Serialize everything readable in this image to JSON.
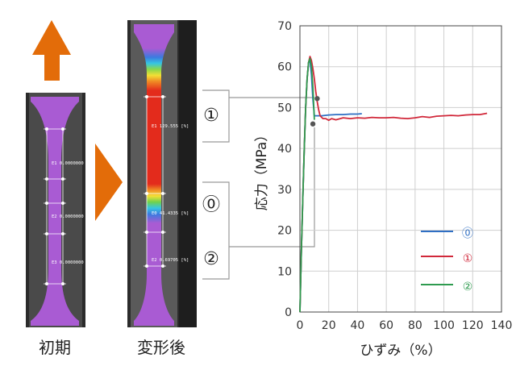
{
  "labels": {
    "initial": "初期",
    "deformed": "変形後"
  },
  "markers": {
    "m0": "⓪",
    "m1": "①",
    "m2": "②"
  },
  "gauges": {
    "initial": [
      "E1 0.0000000 [%]",
      "E2 0.0000000 [%]",
      "E3 0.0000000 [%]"
    ],
    "deformed": [
      "E1 129.555 [%]",
      "E0 41.4335 [%]",
      "E2 0.69705 [%]"
    ]
  },
  "colors": {
    "arrow": "#e36c09",
    "specimen": "#a95bd3",
    "series0": "#2f6fc4",
    "series1": "#d1283a",
    "series2": "#2e9b4f",
    "bracket": "#999999"
  },
  "chart_data": {
    "type": "line",
    "xlabel": "ひずみ（%）",
    "ylabel": "応力（MPa）",
    "xlim": [
      0,
      140
    ],
    "ylim": [
      0,
      70
    ],
    "xticks": [
      0,
      20,
      40,
      60,
      80,
      100,
      120,
      140
    ],
    "yticks": [
      0,
      10,
      20,
      30,
      40,
      50,
      60,
      70
    ],
    "grid": true,
    "legend_position": "bottom-right",
    "series": [
      {
        "name": "⓪",
        "color": "#2f6fc4",
        "x": [
          0,
          1,
          2,
          3,
          4,
          5,
          6,
          7,
          8,
          9,
          10,
          12,
          15,
          20,
          25,
          30,
          35,
          40,
          43
        ],
        "y": [
          0,
          15,
          28,
          40,
          50,
          57,
          61,
          61.5,
          58,
          52,
          48,
          48,
          48,
          48.2,
          48.3,
          48.3,
          48.4,
          48.4,
          48.5
        ]
      },
      {
        "name": "①",
        "color": "#d1283a",
        "x": [
          0,
          1,
          2,
          3,
          4,
          5,
          6,
          7,
          8,
          9,
          10,
          11,
          12,
          13,
          14,
          16,
          18,
          20,
          22,
          25,
          30,
          35,
          40,
          45,
          50,
          55,
          60,
          65,
          70,
          75,
          80,
          85,
          90,
          95,
          100,
          105,
          110,
          115,
          120,
          125,
          130
        ],
        "y": [
          0,
          15,
          28,
          40,
          50,
          57,
          61,
          62.5,
          61.5,
          59.5,
          57,
          54,
          51.5,
          49.5,
          48,
          47.3,
          47.3,
          46.9,
          47.3,
          47,
          47.5,
          47.3,
          47.5,
          47.4,
          47.6,
          47.5,
          47.5,
          47.6,
          47.4,
          47.3,
          47.5,
          47.8,
          47.6,
          47.9,
          48,
          48.1,
          48,
          48.2,
          48.3,
          48.3,
          48.6
        ]
      },
      {
        "name": "②",
        "color": "#2e9b4f",
        "x": [
          0,
          1,
          2,
          3,
          4,
          5,
          6,
          7,
          8,
          9,
          10
        ],
        "y": [
          0,
          15,
          28,
          40,
          50,
          57,
          61,
          62,
          60,
          55,
          47
        ]
      }
    ],
    "annotations": [
      {
        "x": 12,
        "y": 52.2
      },
      {
        "x": 9,
        "y": 46
      }
    ]
  }
}
